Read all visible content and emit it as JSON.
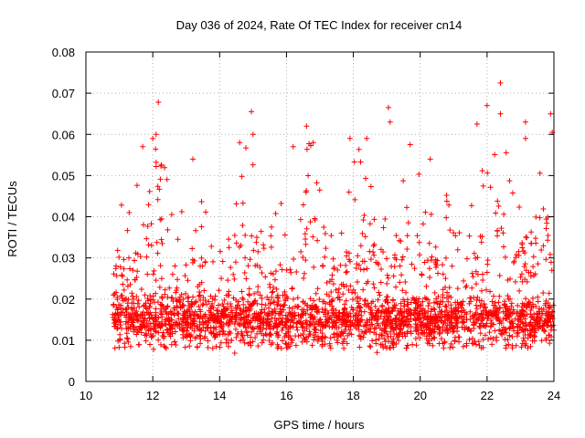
{
  "chart_data": {
    "type": "scatter",
    "title": "Day 036 of 2024, Rate Of TEC Index for receiver cn14",
    "xlabel": "GPS time / hours",
    "ylabel": "ROTI / TECUs",
    "xlim": [
      10,
      24
    ],
    "ylim": [
      0,
      0.08
    ],
    "xticks": [
      "10",
      "12",
      "14",
      "16",
      "18",
      "20",
      "22",
      "24"
    ],
    "yticks": [
      "0",
      "0.01",
      "0.02",
      "0.03",
      "0.04",
      "0.05",
      "0.06",
      "0.07",
      "0.08"
    ],
    "xtick_values": [
      10,
      12,
      14,
      16,
      18,
      20,
      22,
      24
    ],
    "ytick_values": [
      0,
      0.01,
      0.02,
      0.03,
      0.04,
      0.05,
      0.06,
      0.07,
      0.08
    ],
    "grid": true,
    "marker": "+",
    "color": "#ff0000",
    "series": [
      {
        "name": "ROTI",
        "x_range": [
          10.8,
          24.0
        ],
        "baseline_band": [
          0.005,
          0.02
        ],
        "notable_points": [
          {
            "x": 12.0,
            "y": 0.059
          },
          {
            "x": 12.1,
            "y": 0.06
          },
          {
            "x": 11.7,
            "y": 0.057
          },
          {
            "x": 13.2,
            "y": 0.054
          },
          {
            "x": 14.6,
            "y": 0.058
          },
          {
            "x": 14.95,
            "y": 0.0655
          },
          {
            "x": 15.0,
            "y": 0.06
          },
          {
            "x": 16.2,
            "y": 0.057
          },
          {
            "x": 16.6,
            "y": 0.062
          },
          {
            "x": 16.8,
            "y": 0.058
          },
          {
            "x": 17.9,
            "y": 0.059
          },
          {
            "x": 18.4,
            "y": 0.059
          },
          {
            "x": 19.05,
            "y": 0.0665
          },
          {
            "x": 19.1,
            "y": 0.063
          },
          {
            "x": 19.7,
            "y": 0.0575
          },
          {
            "x": 20.3,
            "y": 0.054
          },
          {
            "x": 21.7,
            "y": 0.0625
          },
          {
            "x": 22.0,
            "y": 0.067
          },
          {
            "x": 22.4,
            "y": 0.0725
          },
          {
            "x": 22.4,
            "y": 0.065
          },
          {
            "x": 23.15,
            "y": 0.063
          },
          {
            "x": 23.15,
            "y": 0.059
          },
          {
            "x": 23.9,
            "y": 0.065
          },
          {
            "x": 23.95,
            "y": 0.0605
          }
        ]
      }
    ]
  }
}
